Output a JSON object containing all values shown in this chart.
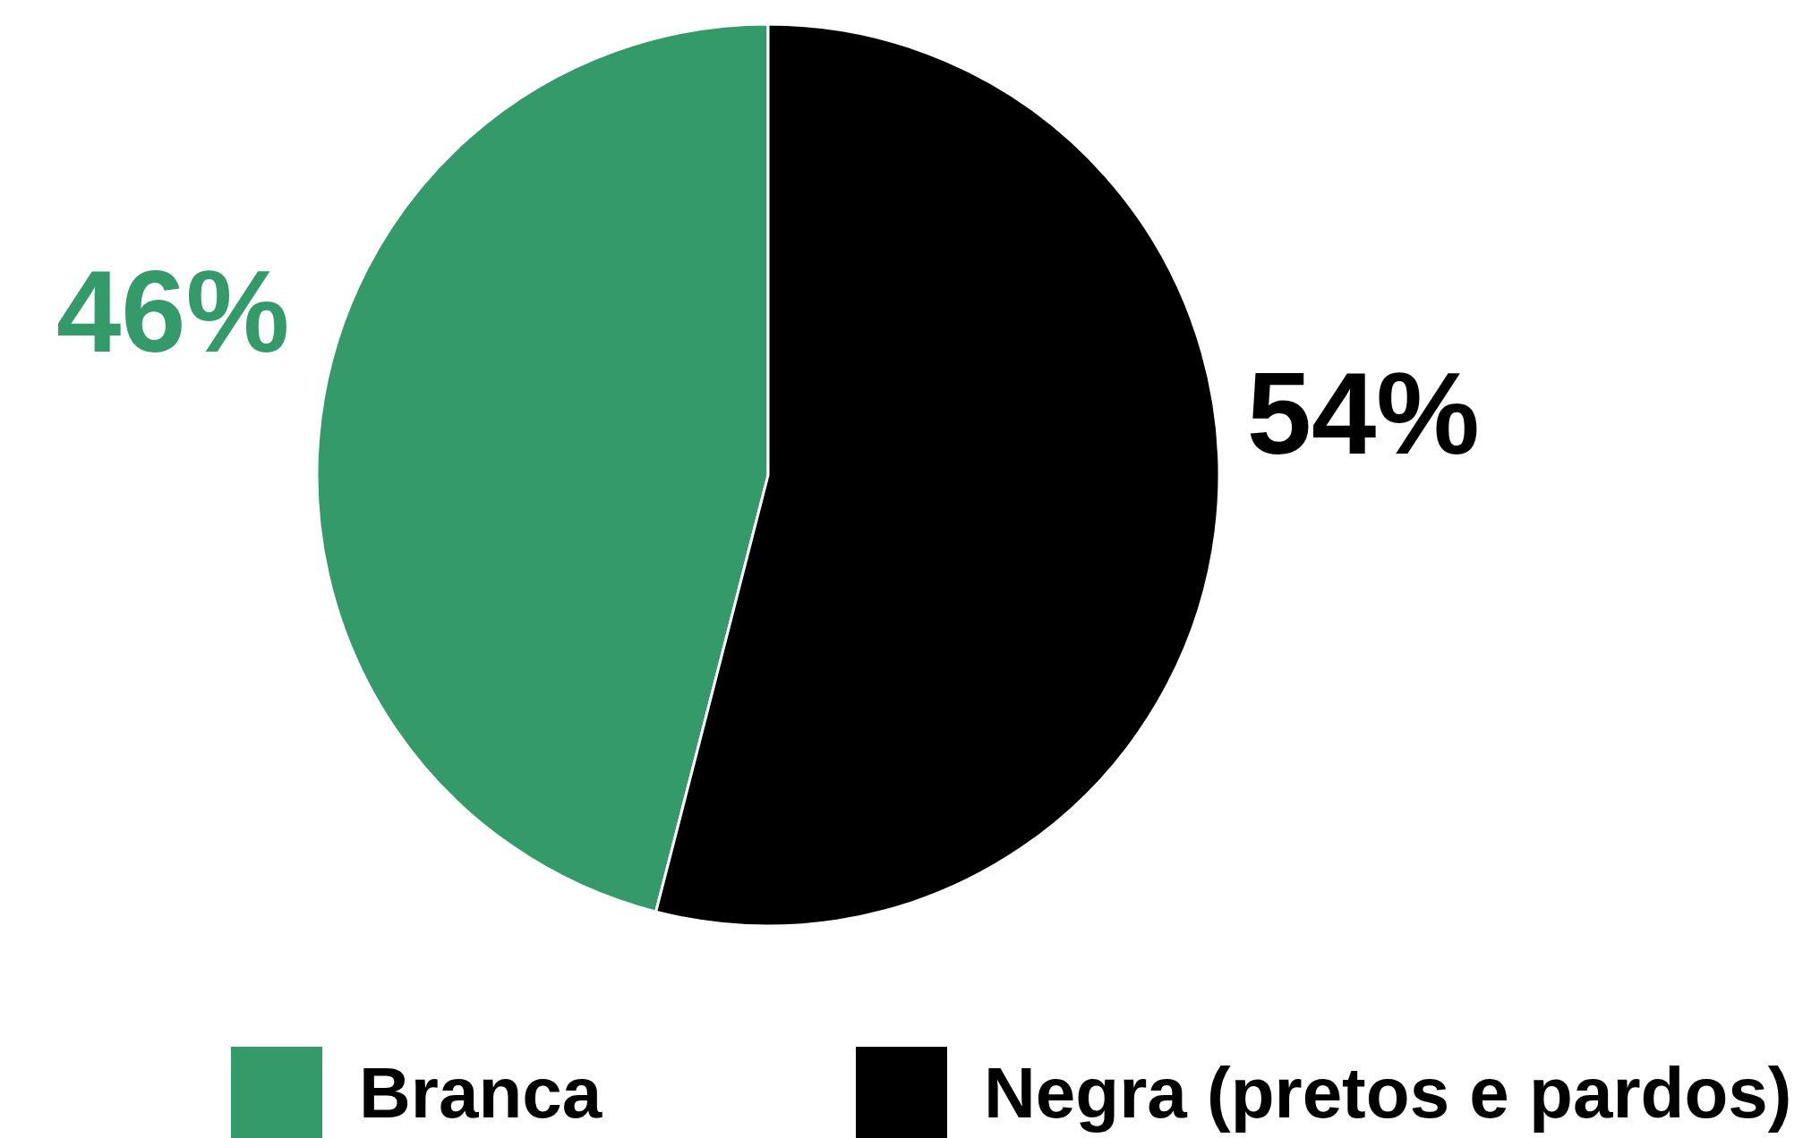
{
  "chart_data": {
    "type": "pie",
    "categories": [
      "Branca",
      "Negra (pretos e pardos)"
    ],
    "values": [
      46,
      54
    ],
    "colors": [
      "#359a6a",
      "#000000"
    ],
    "value_labels": [
      "46%",
      "54%"
    ],
    "legend": "bottom"
  }
}
